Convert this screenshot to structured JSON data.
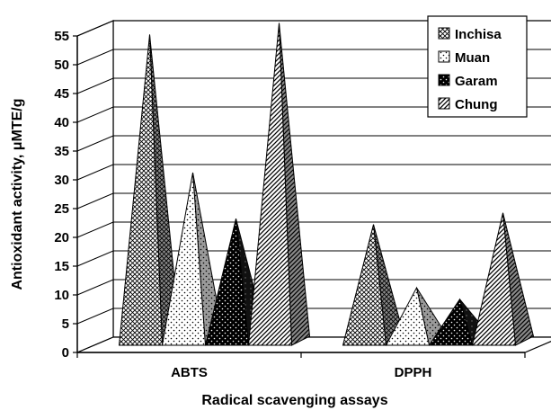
{
  "chart_data": {
    "type": "bar",
    "subtype": "3d-pyramid",
    "title": "",
    "xlabel": "Radical scavenging assays",
    "ylabel": "Antioxidant activity, μMTE/g",
    "categories": [
      "ABTS",
      "DPPH"
    ],
    "ylim": [
      0,
      55
    ],
    "yticks": [
      "0",
      "5",
      "10",
      "15",
      "20",
      "25",
      "30",
      "35",
      "40",
      "45",
      "50",
      "55"
    ],
    "grid": true,
    "legend_position": "top-right",
    "series": [
      {
        "name": "Inchisa",
        "pattern": "crosshatch",
        "values": [
          54,
          21
        ]
      },
      {
        "name": "Muan",
        "pattern": "dots",
        "values": [
          30,
          10
        ]
      },
      {
        "name": "Garam",
        "pattern": "black-dots",
        "values": [
          22,
          8
        ]
      },
      {
        "name": "Chung",
        "pattern": "diagonal-stripes",
        "values": [
          56,
          23
        ]
      }
    ]
  }
}
